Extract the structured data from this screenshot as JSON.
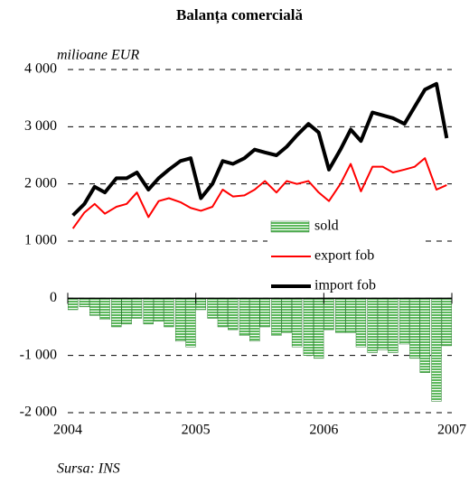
{
  "chart_data": {
    "type": "bar",
    "title": "Balanța comercială",
    "y_label": "milioane EUR",
    "source": "Sursa: INS",
    "x": [
      2004.04,
      2004.13,
      2004.21,
      2004.29,
      2004.38,
      2004.46,
      2004.54,
      2004.63,
      2004.71,
      2004.79,
      2004.88,
      2004.96,
      2005.04,
      2005.13,
      2005.21,
      2005.29,
      2005.38,
      2005.46,
      2005.54,
      2005.63,
      2005.71,
      2005.79,
      2005.88,
      2005.96,
      2006.04,
      2006.13,
      2006.21,
      2006.29,
      2006.38,
      2006.46,
      2006.54,
      2006.63,
      2006.71,
      2006.79,
      2006.88,
      2006.96
    ],
    "xlim": [
      2004,
      2007
    ],
    "xticks": [
      2004,
      2005,
      2006,
      2007
    ],
    "ylim": [
      -2000,
      4000
    ],
    "yticks": [
      {
        "value": -2000,
        "label": "-2 000"
      },
      {
        "value": -1000,
        "label": "-1 000"
      },
      0,
      {
        "value": 1000,
        "label": "1 000"
      },
      {
        "value": 2000,
        "label": "2 000"
      },
      {
        "value": 3000,
        "label": "3 000"
      },
      {
        "value": 4000,
        "label": "4 000"
      }
    ],
    "grid": true,
    "legend": "right",
    "series": [
      {
        "name": "sold",
        "type": "bar",
        "color": "#5cb85c",
        "values": [
          -200,
          -150,
          -300,
          -370,
          -500,
          -450,
          -350,
          -450,
          -400,
          -500,
          -750,
          -850,
          -200,
          -350,
          -500,
          -550,
          -650,
          -750,
          -500,
          -650,
          -600,
          -850,
          -1000,
          -1050,
          -550,
          -600,
          -600,
          -850,
          -950,
          -900,
          -950,
          -800,
          -1050,
          -1300,
          -1800,
          -830
        ]
      },
      {
        "name": "export fob",
        "type": "line",
        "color": "#ff0000",
        "values": [
          1220,
          1500,
          1650,
          1480,
          1600,
          1650,
          1850,
          1420,
          1700,
          1750,
          1680,
          1580,
          1530,
          1600,
          1900,
          1780,
          1800,
          1900,
          2050,
          1850,
          2050,
          2000,
          2050,
          1850,
          1700,
          2000,
          2350,
          1870,
          2300,
          2300,
          2200,
          2250,
          2300,
          2450,
          1900,
          1980
        ]
      },
      {
        "name": "import fob",
        "type": "line",
        "color": "#000000",
        "values": [
          1450,
          1650,
          1950,
          1850,
          2100,
          2100,
          2200,
          1900,
          2100,
          2250,
          2400,
          2450,
          1750,
          2000,
          2400,
          2350,
          2450,
          2600,
          2550,
          2500,
          2650,
          2850,
          3050,
          2900,
          2250,
          2600,
          2950,
          2750,
          3250,
          3200,
          3150,
          3050,
          3350,
          3650,
          3750,
          2800
        ]
      }
    ]
  }
}
